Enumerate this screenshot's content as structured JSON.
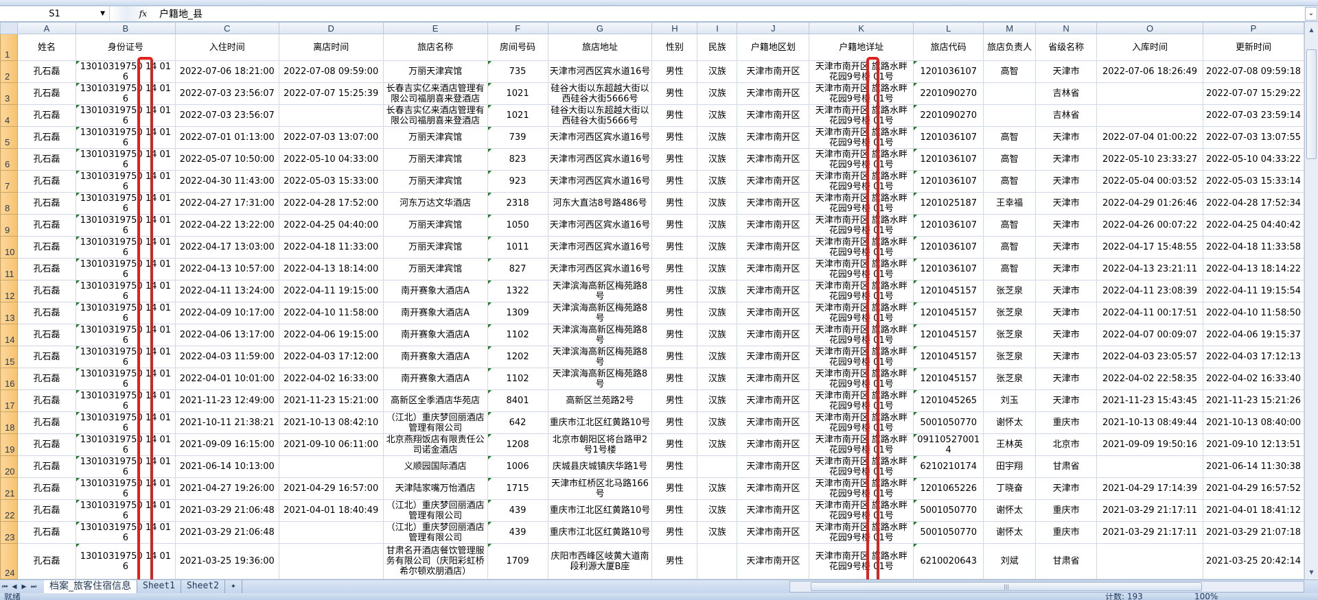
{
  "formula_bar": {
    "name_box": "S1",
    "fx_label": "fx",
    "content": "户籍地_县"
  },
  "columns": [
    "A",
    "B",
    "C",
    "D",
    "E",
    "F",
    "G",
    "H",
    "I",
    "J",
    "K",
    "L",
    "M",
    "N",
    "O",
    "P"
  ],
  "header_row": [
    "姓名",
    "身份证号",
    "入住时间",
    "离店时间",
    "旅店名称",
    "房间号码",
    "旅店地址",
    "性别",
    "民族",
    "户籍地区划",
    "户籍地详址",
    "旅店代码",
    "旅店负责人",
    "省级名称",
    "入库时间",
    "更新时间"
  ],
  "rows": [
    {
      "n": "2",
      "cells": [
        "孔石磊",
        "13010319750 14 016",
        "2022-07-06 18:21:00",
        "2022-07-08 09:59:00",
        "万丽天津宾馆",
        "735",
        "天津市河西区宾水道16号",
        "男性",
        "汉族",
        "天津市南开区",
        "天津市南开区 旗路水畔花园9号楼 01号",
        "1201036107",
        "高智",
        "天津市",
        "2022-07-06 18:26:49",
        "2022-07-08 09:59:18"
      ]
    },
    {
      "n": "3",
      "cells": [
        "孔石磊",
        "13010319750 14 016",
        "2022-07-03 23:56:07",
        "2022-07-07 15:25:39",
        "长春吉实亿来酒店管理有限公司福朋喜来登酒店",
        "1021",
        "硅谷大街以东超越大街以西硅谷大街5666号",
        "男性",
        "汉族",
        "天津市南开区",
        "天津市南开区 旗路水畔花园9号楼 01号",
        "2201090270",
        "",
        "吉林省",
        "",
        "2022-07-07 15:29:22"
      ]
    },
    {
      "n": "4",
      "cells": [
        "孔石磊",
        "13010319750 14 016",
        "2022-07-03 23:56:07",
        "",
        "长春吉实亿来酒店管理有限公司福朋喜来登酒店",
        "1021",
        "硅谷大街以东超越大街以西硅谷大街5666号",
        "男性",
        "汉族",
        "天津市南开区",
        "天津市南开区 旗路水畔花园9号楼 01号",
        "2201090270",
        "",
        "吉林省",
        "",
        "2022-07-03 23:59:14"
      ]
    },
    {
      "n": "5",
      "cells": [
        "孔石磊",
        "13010319750 14 016",
        "2022-07-01 01:13:00",
        "2022-07-03 13:07:00",
        "万丽天津宾馆",
        "739",
        "天津市河西区宾水道16号",
        "男性",
        "汉族",
        "天津市南开区",
        "天津市南开区 旗路水畔花园9号楼 01号",
        "1201036107",
        "高智",
        "天津市",
        "2022-07-04 01:00:22",
        "2022-07-03 13:07:55"
      ]
    },
    {
      "n": "6",
      "cells": [
        "孔石磊",
        "13010319750 14 016",
        "2022-05-07 10:50:00",
        "2022-05-10 04:33:00",
        "万丽天津宾馆",
        "823",
        "天津市河西区宾水道16号",
        "男性",
        "汉族",
        "天津市南开区",
        "天津市南开区 旗路水畔花园9号楼 01号",
        "1201036107",
        "高智",
        "天津市",
        "2022-05-10 23:33:27",
        "2022-05-10 04:33:22"
      ]
    },
    {
      "n": "7",
      "cells": [
        "孔石磊",
        "13010319750 14 016",
        "2022-04-30 11:43:00",
        "2022-05-03 15:33:00",
        "万丽天津宾馆",
        "923",
        "天津市河西区宾水道16号",
        "男性",
        "汉族",
        "天津市南开区",
        "天津市南开区 旗路水畔花园9号楼 01号",
        "1201036107",
        "高智",
        "天津市",
        "2022-05-04 00:03:52",
        "2022-05-03 15:33:14"
      ]
    },
    {
      "n": "8",
      "cells": [
        "孔石磊",
        "13010319750 14 016",
        "2022-04-27 17:31:00",
        "2022-04-28 17:52:00",
        "河东万达文华酒店",
        "2318",
        "河东大直沽8号路486号",
        "男性",
        "汉族",
        "天津市南开区",
        "天津市南开区 旗路水畔花园9号楼 01号",
        "1201025187",
        "王幸福",
        "天津市",
        "2022-04-29 01:26:46",
        "2022-04-28 17:52:34"
      ]
    },
    {
      "n": "9",
      "cells": [
        "孔石磊",
        "13010319750 14 016",
        "2022-04-22 13:22:00",
        "2022-04-25 04:40:00",
        "万丽天津宾馆",
        "1050",
        "天津市河西区宾水道16号",
        "男性",
        "汉族",
        "天津市南开区",
        "天津市南开区 旗路水畔花园9号楼 01号",
        "1201036107",
        "高智",
        "天津市",
        "2022-04-26 00:07:22",
        "2022-04-25 04:40:42"
      ]
    },
    {
      "n": "10",
      "cells": [
        "孔石磊",
        "13010319750 14 016",
        "2022-04-17 13:03:00",
        "2022-04-18 11:33:00",
        "万丽天津宾馆",
        "1011",
        "天津市河西区宾水道16号",
        "男性",
        "汉族",
        "天津市南开区",
        "天津市南开区 旗路水畔花园9号楼 01号",
        "1201036107",
        "高智",
        "天津市",
        "2022-04-17 15:48:55",
        "2022-04-18 11:33:58"
      ]
    },
    {
      "n": "11",
      "cells": [
        "孔石磊",
        "13010319750 14 016",
        "2022-04-13 10:57:00",
        "2022-04-13 18:14:00",
        "万丽天津宾馆",
        "827",
        "天津市河西区宾水道16号",
        "男性",
        "汉族",
        "天津市南开区",
        "天津市南开区 旗路水畔花园9号楼 01号",
        "1201036107",
        "高智",
        "天津市",
        "2022-04-13 23:21:11",
        "2022-04-13 18:14:22"
      ]
    },
    {
      "n": "12",
      "cells": [
        "孔石磊",
        "13010319750 14 016",
        "2022-04-11 13:24:00",
        "2022-04-11 19:15:00",
        "南开赛象大酒店A",
        "1322",
        "天津滨海高新区梅苑路8号",
        "男性",
        "汉族",
        "天津市南开区",
        "天津市南开区 旗路水畔花园9号楼 01号",
        "1201045157",
        "张芝泉",
        "天津市",
        "2022-04-11 23:08:39",
        "2022-04-11 19:15:54"
      ]
    },
    {
      "n": "13",
      "cells": [
        "孔石磊",
        "13010319750 14 016",
        "2022-04-09 10:17:00",
        "2022-04-10 11:58:00",
        "南开赛象大酒店A",
        "1309",
        "天津滨海高新区梅苑路8号",
        "男性",
        "汉族",
        "天津市南开区",
        "天津市南开区 旗路水畔花园9号楼 01号",
        "1201045157",
        "张芝泉",
        "天津市",
        "2022-04-11 00:17:51",
        "2022-04-10 11:58:50"
      ]
    },
    {
      "n": "14",
      "cells": [
        "孔石磊",
        "13010319750 14 016",
        "2022-04-06 13:17:00",
        "2022-04-06 19:15:00",
        "南开赛象大酒店A",
        "1102",
        "天津滨海高新区梅苑路8号",
        "男性",
        "汉族",
        "天津市南开区",
        "天津市南开区 旗路水畔花园9号楼 01号",
        "1201045157",
        "张芝泉",
        "天津市",
        "2022-04-07 00:09:07",
        "2022-04-06 19:15:37"
      ]
    },
    {
      "n": "15",
      "cells": [
        "孔石磊",
        "13010319750 14 016",
        "2022-04-03 11:59:00",
        "2022-04-03 17:12:00",
        "南开赛象大酒店A",
        "1202",
        "天津滨海高新区梅苑路8号",
        "男性",
        "汉族",
        "天津市南开区",
        "天津市南开区 旗路水畔花园9号楼 01号",
        "1201045157",
        "张芝泉",
        "天津市",
        "2022-04-03 23:05:57",
        "2022-04-03 17:12:13"
      ]
    },
    {
      "n": "16",
      "cells": [
        "孔石磊",
        "13010319750 14 016",
        "2022-04-01 10:01:00",
        "2022-04-02 16:33:00",
        "南开赛象大酒店A",
        "1102",
        "天津滨海高新区梅苑路8号",
        "男性",
        "汉族",
        "天津市南开区",
        "天津市南开区 旗路水畔花园9号楼 01号",
        "1201045157",
        "张芝泉",
        "天津市",
        "2022-04-02 22:58:35",
        "2022-04-02 16:33:40"
      ]
    },
    {
      "n": "17",
      "cells": [
        "孔石磊",
        "13010319750 14 016",
        "2021-11-23 12:49:00",
        "2021-11-23 15:21:00",
        "高新区全季酒店华苑店",
        "8401",
        "高新区兰苑路2号",
        "男性",
        "汉族",
        "天津市南开区",
        "天津市南开区 旗路水畔花园9号楼 01号",
        "1201045265",
        "刘玉",
        "天津市",
        "2021-11-23 15:43:45",
        "2021-11-23 15:21:26"
      ]
    },
    {
      "n": "18",
      "cells": [
        "孔石磊",
        "13010319750 14 016",
        "2021-10-11 21:38:21",
        "2021-10-13 08:42:10",
        "（江北）重庆梦回丽酒店管理有限公司",
        "642",
        "重庆市江北区红黄路10号",
        "男性",
        "汉族",
        "天津市南开区",
        "天津市南开区 旗路水畔花园9号楼 01号",
        "5001050770",
        "谢怀太",
        "重庆市",
        "2021-10-13 08:49:44",
        "2021-10-13 08:40:00"
      ]
    },
    {
      "n": "19",
      "cells": [
        "孔石磊",
        "13010319750 14 016",
        "2021-09-09 16:15:00",
        "2021-09-10 06:11:00",
        "北京燕翔饭店有限责任公司诺金酒店",
        "1208",
        "北京市朝阳区将台路甲2号1号楼",
        "男性",
        "汉族",
        "天津市南开区",
        "天津市南开区 旗路水畔花园9号楼 01号",
        "091105270014",
        "王林英",
        "北京市",
        "2021-09-09 19:50:16",
        "2021-09-10 12:13:51"
      ]
    },
    {
      "n": "20",
      "cells": [
        "孔石磊",
        "13010319750 14 016",
        "2021-06-14 10:13:00",
        "",
        "义顺园国际酒店",
        "1006",
        "庆城县庆城镇庆华路1号",
        "男性",
        "",
        "天津市南开区",
        "天津市南开区 旗路水畔花园9号楼 01号",
        "6210210174",
        "田宇翔",
        "甘肃省",
        "",
        "2021-06-14 11:30:38"
      ]
    },
    {
      "n": "21",
      "cells": [
        "孔石磊",
        "13010319750 14 016",
        "2021-04-27 19:26:00",
        "2021-04-29 16:57:00",
        "天津陆家嘴万怡酒店",
        "1715",
        "天津市红桥区北马路166号",
        "男性",
        "汉族",
        "天津市南开区",
        "天津市南开区 旗路水畔花园9号楼 01号",
        "1201065226",
        "丁晓奋",
        "天津市",
        "2021-04-29 17:14:39",
        "2021-04-29 16:57:52"
      ]
    },
    {
      "n": "22",
      "cells": [
        "孔石磊",
        "13010319750 14 016",
        "2021-03-29 21:06:48",
        "2021-04-01 18:40:49",
        "（江北）重庆梦回丽酒店管理有限公司",
        "439",
        "重庆市江北区红黄路10号",
        "男性",
        "汉族",
        "天津市南开区",
        "天津市南开区 旗路水畔花园9号楼 01号",
        "5001050770",
        "谢怀太",
        "重庆市",
        "2021-03-29 21:17:11",
        "2021-04-01 18:41:12"
      ]
    },
    {
      "n": "23",
      "cells": [
        "孔石磊",
        "13010319750 14 016",
        "2021-03-29 21:06:48",
        "",
        "（江北）重庆梦回丽酒店管理有限公司",
        "439",
        "重庆市江北区红黄路10号",
        "男性",
        "汉族",
        "天津市南开区",
        "天津市南开区 旗路水畔花园9号楼 01号",
        "5001050770",
        "谢怀太",
        "重庆市",
        "2021-03-29 21:17:11",
        "2021-03-29 21:07:18"
      ]
    },
    {
      "n": "24",
      "cells": [
        "孔石磊",
        "13010319750 14 016",
        "2021-03-25 19:36:00",
        "",
        "甘肃名开酒店餐饮管理服务有限公司（庆阳彩虹桥希尔顿欢朋酒店）",
        "1709",
        "庆阳市西峰区岐黄大道南段利源大厦B座",
        "男性",
        "",
        "天津市南开区",
        "天津市南开区 旗路水畔花园9号楼 01号",
        "6210020643",
        "刘斌",
        "甘肃省",
        "",
        "2021-03-25 20:42:14"
      ]
    }
  ],
  "partial_row_25_k": "天津市南开区 旗路水畔",
  "sheet_tabs": [
    {
      "label": "档案_旅客住宿信息",
      "active": true
    },
    {
      "label": "Sheet1"
    },
    {
      "label": "Sheet2"
    }
  ],
  "status_bar": {
    "ready": "就绪",
    "count": "计数: 193",
    "zoom": "100%"
  },
  "highlight_color": "#e0201c",
  "icons": {
    "name_box_dropdown": "chevron-down-icon",
    "formula": "fx-icon",
    "new_sheet": "insert-sheet-icon"
  }
}
